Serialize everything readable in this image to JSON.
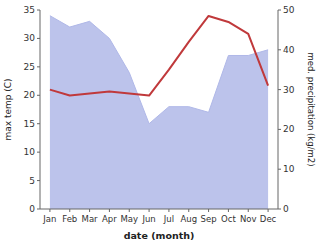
{
  "chart_data": {
    "type": "line",
    "xlabel": "date (month)",
    "ylabel": "max temp (C)",
    "y2label": "med. precipitation (kg/m2)",
    "categories": [
      "Jan",
      "Feb",
      "Mar",
      "Apr",
      "May",
      "Jun",
      "Jul",
      "Aug",
      "Sep",
      "Oct",
      "Nov",
      "Dec"
    ],
    "series": [
      {
        "type": "area",
        "color": "#b0b8e8",
        "values": [
          34,
          32,
          33,
          30,
          24,
          15,
          18,
          18,
          17,
          27,
          27,
          28
        ]
      },
      {
        "type": "line",
        "color": "#c0393b",
        "axis": "y2",
        "values": [
          30.0,
          28.5,
          29.0,
          29.5,
          29.0,
          28.5,
          35.0,
          42.0,
          48.5,
          47.0,
          44.0,
          31.0
        ]
      }
    ],
    "ylim": [
      0,
      35
    ],
    "yticks": [
      0,
      5,
      10,
      15,
      20,
      25,
      30,
      35
    ],
    "y2lim": [
      0,
      50
    ],
    "y2ticks": [
      0,
      10,
      20,
      30,
      40,
      50
    ],
    "grid": false
  }
}
